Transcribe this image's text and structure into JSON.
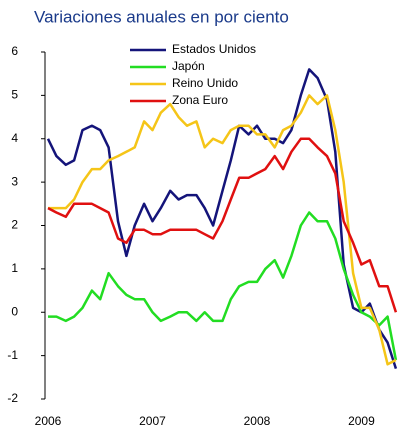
{
  "chart_data": {
    "type": "line",
    "title": "Variaciones anuales en por ciento",
    "x": [
      2006.0,
      2006.08,
      2006.17,
      2006.25,
      2006.33,
      2006.42,
      2006.5,
      2006.58,
      2006.67,
      2006.75,
      2006.83,
      2006.92,
      2007.0,
      2007.08,
      2007.17,
      2007.25,
      2007.33,
      2007.42,
      2007.5,
      2007.58,
      2007.67,
      2007.75,
      2007.83,
      2007.92,
      2008.0,
      2008.08,
      2008.17,
      2008.25,
      2008.33,
      2008.42,
      2008.5,
      2008.58,
      2008.67,
      2008.75,
      2008.83,
      2008.92,
      2009.0,
      2009.08,
      2009.17,
      2009.25,
      2009.33
    ],
    "series": [
      {
        "name": "Estados  Unidos",
        "color": "#14147a",
        "values": [
          4.0,
          3.6,
          3.4,
          3.5,
          4.2,
          4.3,
          4.2,
          3.8,
          2.1,
          1.3,
          2.0,
          2.5,
          2.1,
          2.4,
          2.8,
          2.6,
          2.7,
          2.7,
          2.4,
          2.0,
          2.8,
          3.5,
          4.3,
          4.1,
          4.3,
          4.0,
          4.0,
          3.9,
          4.2,
          5.0,
          5.6,
          5.4,
          4.9,
          3.7,
          1.1,
          0.1,
          0.0,
          0.2,
          -0.4,
          -0.7,
          -1.3
        ]
      },
      {
        "name": "Japón",
        "color": "#22dd22",
        "values": [
          -0.1,
          -0.1,
          -0.2,
          -0.1,
          0.1,
          0.5,
          0.3,
          0.9,
          0.6,
          0.4,
          0.3,
          0.3,
          0.0,
          -0.2,
          -0.1,
          0.0,
          0.0,
          -0.2,
          0.0,
          -0.2,
          -0.2,
          0.3,
          0.6,
          0.7,
          0.7,
          1.0,
          1.2,
          0.8,
          1.3,
          2.0,
          2.3,
          2.1,
          2.1,
          1.7,
          1.0,
          0.4,
          0.0,
          -0.1,
          -0.3,
          -0.1,
          -1.1
        ]
      },
      {
        "name": "Reino Unido",
        "color": "#f5c518",
        "values": [
          2.4,
          2.4,
          2.4,
          2.6,
          3.0,
          3.3,
          3.3,
          3.5,
          3.6,
          3.7,
          3.8,
          4.4,
          4.2,
          4.6,
          4.8,
          4.5,
          4.3,
          4.4,
          3.8,
          4.0,
          3.9,
          4.2,
          4.3,
          4.3,
          4.1,
          4.1,
          3.8,
          4.2,
          4.3,
          4.6,
          5.0,
          4.8,
          5.0,
          4.2,
          3.0,
          0.9,
          0.1,
          0.1,
          -0.4,
          -1.2,
          -1.1
        ]
      },
      {
        "name": "Zona Euro",
        "color": "#e01010",
        "values": [
          2.4,
          2.3,
          2.2,
          2.5,
          2.5,
          2.5,
          2.4,
          2.3,
          1.7,
          1.6,
          1.9,
          1.9,
          1.8,
          1.8,
          1.9,
          1.9,
          1.9,
          1.9,
          1.8,
          1.7,
          2.1,
          2.6,
          3.1,
          3.1,
          3.2,
          3.3,
          3.6,
          3.3,
          3.7,
          4.0,
          4.0,
          3.8,
          3.6,
          3.2,
          2.1,
          1.6,
          1.1,
          1.2,
          0.6,
          0.6,
          0.0
        ]
      }
    ],
    "xlim": [
      2006,
      2009.35
    ],
    "xticks": [
      2006,
      2007,
      2008,
      2009
    ],
    "ylim": [
      -2,
      6
    ],
    "yticks": [
      -2,
      -1,
      0,
      1,
      2,
      3,
      4,
      5,
      6
    ]
  }
}
